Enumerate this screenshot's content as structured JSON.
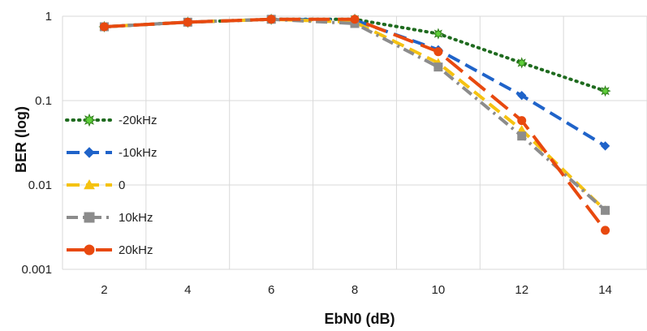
{
  "chart_data": {
    "type": "line",
    "title": "",
    "xlabel": "EbN0  (dB)",
    "ylabel": "BER (log)",
    "x": [
      2,
      4,
      6,
      8,
      10,
      12,
      14
    ],
    "x_ticks": [
      "2",
      "4",
      "6",
      "8",
      "10",
      "12",
      "14"
    ],
    "xlim": [
      1,
      15
    ],
    "ylim": [
      0.001,
      1
    ],
    "y_scale": "log",
    "y_ticks": [
      {
        "value": 1,
        "label": "1"
      },
      {
        "value": 0.1,
        "label": "0.1"
      },
      {
        "value": 0.01,
        "label": "0.01"
      },
      {
        "value": 0.001,
        "label": "0.001"
      }
    ],
    "grid": true,
    "legend_position": "left",
    "series": [
      {
        "name": "-20kHz",
        "values": [
          0.75,
          0.85,
          0.92,
          0.92,
          0.62,
          0.28,
          0.13
        ],
        "color": "#1f6b1f",
        "marker_color": "#5fcf3a",
        "dash": "dotted",
        "marker": "star"
      },
      {
        "name": "-10kHz",
        "values": [
          0.75,
          0.85,
          0.92,
          0.9,
          0.4,
          0.115,
          0.029
        ],
        "color": "#1f63c9",
        "marker_color": "#1f63c9",
        "dash": "dashed",
        "marker": "diamond"
      },
      {
        "name": "0",
        "values": [
          0.75,
          0.85,
          0.92,
          0.85,
          0.28,
          0.045,
          0.005
        ],
        "color": "#f5c211",
        "marker_color": "#f5c211",
        "dash": "dashed",
        "marker": "triangle"
      },
      {
        "name": "10kHz",
        "values": [
          0.75,
          0.85,
          0.92,
          0.82,
          0.25,
          0.038,
          0.005
        ],
        "color": "#8c8c8c",
        "marker_color": "#8c8c8c",
        "dash": "dashdot",
        "marker": "square"
      },
      {
        "name": "20kHz",
        "values": [
          0.75,
          0.85,
          0.92,
          0.92,
          0.38,
          0.058,
          0.0029
        ],
        "color": "#e8490f",
        "marker_color": "#e8490f",
        "dash": "longdash",
        "marker": "circle"
      }
    ]
  }
}
